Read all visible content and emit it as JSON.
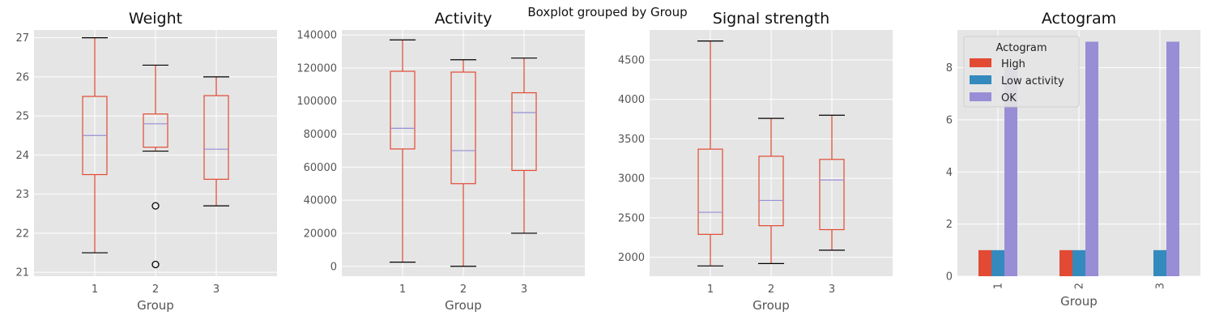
{
  "chart_data": {
    "suptitle": "Boxplot grouped by Group",
    "panels": [
      {
        "type": "boxplot",
        "title": "Weight",
        "xlabel": "Group",
        "categories": [
          "1",
          "2",
          "3"
        ],
        "ylim": [
          20.9,
          27.2
        ],
        "yticks": [
          21,
          22,
          23,
          24,
          25,
          26,
          27
        ],
        "boxes": [
          {
            "whisker_low": 21.5,
            "q1": 23.5,
            "median": 24.5,
            "q3": 25.5,
            "whisker_high": 27.0,
            "outliers": []
          },
          {
            "whisker_low": 24.1,
            "q1": 24.2,
            "median": 24.8,
            "q3": 25.05,
            "whisker_high": 26.3,
            "outliers": [
              22.7,
              21.2
            ]
          },
          {
            "whisker_low": 22.7,
            "q1": 23.38,
            "median": 24.15,
            "q3": 25.52,
            "whisker_high": 26.0,
            "outliers": []
          }
        ]
      },
      {
        "type": "boxplot",
        "title": "Activity",
        "xlabel": "Group",
        "categories": [
          "1",
          "2",
          "3"
        ],
        "ylim": [
          -6000,
          143000
        ],
        "yticks": [
          0,
          20000,
          40000,
          60000,
          80000,
          100000,
          120000,
          140000
        ],
        "boxes": [
          {
            "whisker_low": 2500,
            "q1": 71000,
            "median": 83500,
            "q3": 118000,
            "whisker_high": 137000,
            "outliers": []
          },
          {
            "whisker_low": 0,
            "q1": 50000,
            "median": 70000,
            "q3": 117500,
            "whisker_high": 125000,
            "outliers": []
          },
          {
            "whisker_low": 20000,
            "q1": 58000,
            "median": 93000,
            "q3": 105000,
            "whisker_high": 126000,
            "outliers": []
          }
        ]
      },
      {
        "type": "boxplot",
        "title": "Signal strength",
        "xlabel": "Group",
        "categories": [
          "1",
          "2",
          "3"
        ],
        "ylim": [
          1760,
          4880
        ],
        "yticks": [
          2000,
          2500,
          3000,
          3500,
          4000,
          4500
        ],
        "boxes": [
          {
            "whisker_low": 1890,
            "q1": 2290,
            "median": 2570,
            "q3": 3370,
            "whisker_high": 4740,
            "outliers": []
          },
          {
            "whisker_low": 1920,
            "q1": 2400,
            "median": 2720,
            "q3": 3280,
            "whisker_high": 3760,
            "outliers": []
          },
          {
            "whisker_low": 2090,
            "q1": 2350,
            "median": 2980,
            "q3": 3240,
            "whisker_high": 3800,
            "outliers": []
          }
        ]
      },
      {
        "type": "bar",
        "title": "Actogram",
        "xlabel": "Group",
        "categories": [
          "1",
          "2",
          "3"
        ],
        "ylim": [
          0,
          9.45
        ],
        "yticks": [
          0,
          2,
          4,
          6,
          8
        ],
        "legend_title": "Actogram",
        "legend_position": "top-left",
        "series": [
          {
            "name": "High",
            "color": "#E24A33",
            "values": [
              1,
              1,
              0
            ]
          },
          {
            "name": "Low activity",
            "color": "#348ABD",
            "values": [
              1,
              1,
              1
            ]
          },
          {
            "name": "OK",
            "color": "#988ED5",
            "values": [
              8,
              9,
              9
            ]
          }
        ]
      }
    ]
  },
  "colors": {
    "panel_background": "#E5E5E5",
    "grid": "#FFFFFF",
    "box": "#E24A33",
    "median": "#988ED5",
    "caps": "#000000"
  },
  "grid": true
}
